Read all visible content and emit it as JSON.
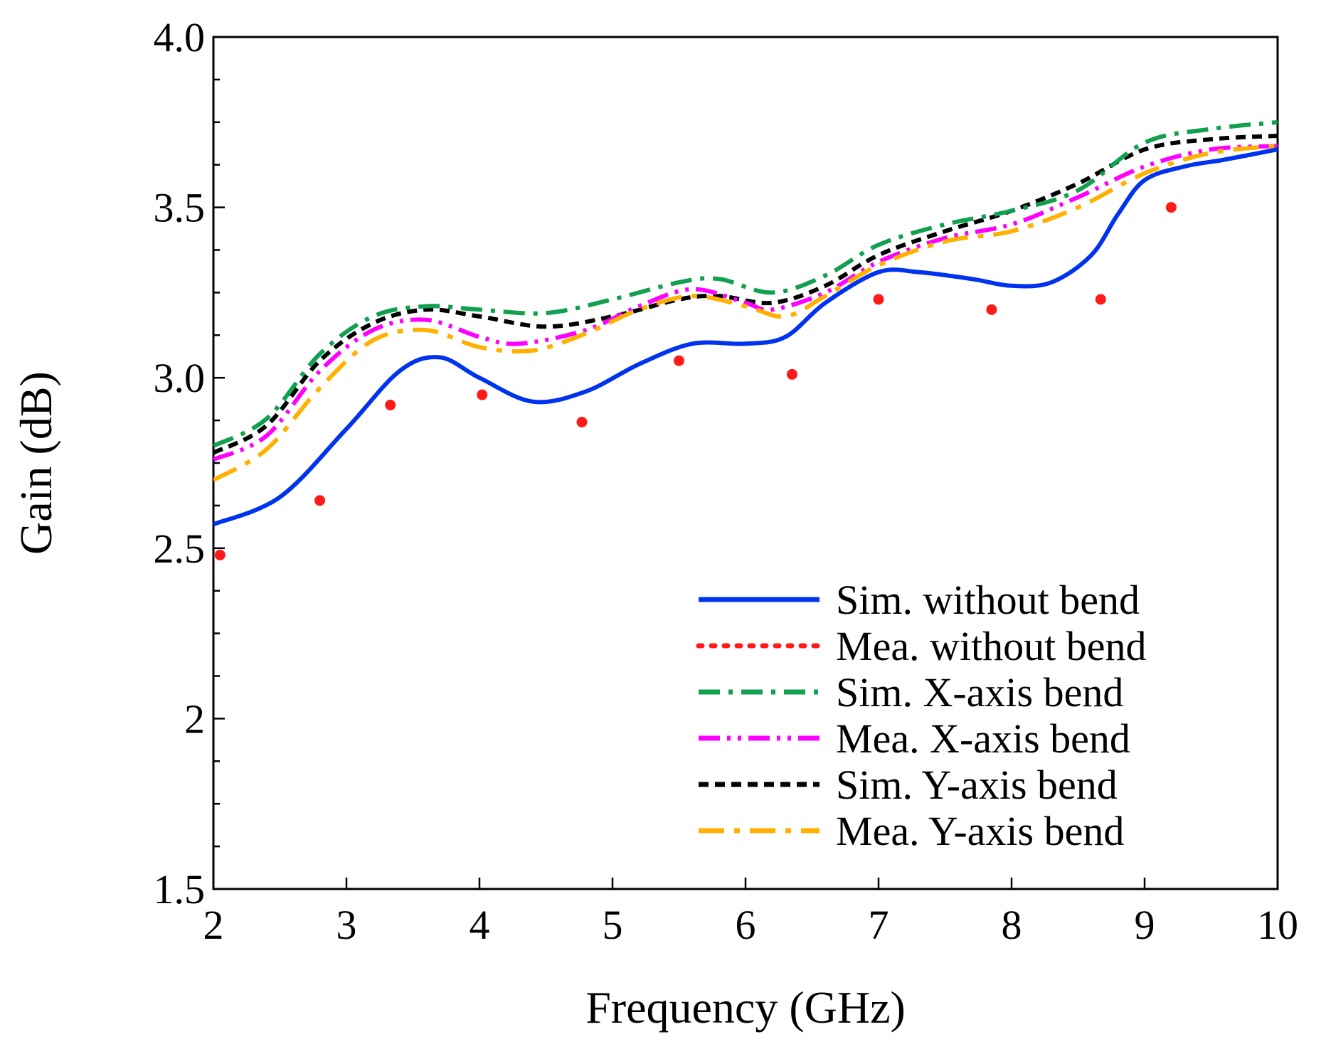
{
  "chart_data": {
    "type": "line",
    "title": "",
    "xlabel": "Frequency (GHz)",
    "ylabel": "Gain (dB)",
    "xlim": [
      2,
      10
    ],
    "ylim": [
      1.5,
      4.0
    ],
    "x_ticks": [
      {
        "value": 2,
        "label": "2"
      },
      {
        "value": 3,
        "label": "3"
      },
      {
        "value": 4,
        "label": "4"
      },
      {
        "value": 5,
        "label": "5"
      },
      {
        "value": 6,
        "label": "6"
      },
      {
        "value": 7,
        "label": "7"
      },
      {
        "value": 8,
        "label": "8"
      },
      {
        "value": 9,
        "label": "9"
      },
      {
        "value": 10,
        "label": "10"
      }
    ],
    "y_ticks": [
      {
        "value": 1.5,
        "label": "1.5"
      },
      {
        "value": 2.0,
        "label": "2"
      },
      {
        "value": 2.5,
        "label": "2.5"
      },
      {
        "value": 3.0,
        "label": "3.0"
      },
      {
        "value": 3.5,
        "label": "3.5"
      },
      {
        "value": 4.0,
        "label": "4.0"
      }
    ],
    "y_minor_step": 0.125,
    "grid": false,
    "legend_position": "bottom-right",
    "series": [
      {
        "name": "Sim. without bend",
        "color": "#0033ee",
        "style": "solid",
        "x": [
          2.0,
          2.5,
          3.0,
          3.4,
          3.7,
          4.0,
          4.4,
          4.8,
          5.2,
          5.6,
          6.0,
          6.3,
          6.6,
          7.0,
          7.3,
          7.7,
          8.0,
          8.3,
          8.6,
          8.8,
          9.0,
          9.3,
          9.6,
          10.0
        ],
        "y": [
          2.57,
          2.65,
          2.85,
          3.02,
          3.06,
          3.0,
          2.93,
          2.96,
          3.04,
          3.1,
          3.1,
          3.12,
          3.22,
          3.31,
          3.31,
          3.29,
          3.27,
          3.28,
          3.36,
          3.48,
          3.58,
          3.62,
          3.64,
          3.67
        ]
      },
      {
        "name": "Mea. without bend",
        "color": "#ff1a1a",
        "style": "dotted",
        "x": [
          2.05,
          2.8,
          3.33,
          4.02,
          4.77,
          5.5,
          6.35,
          7.0,
          7.85,
          8.67,
          9.2
        ],
        "y": [
          2.48,
          2.64,
          2.92,
          2.95,
          2.87,
          3.05,
          3.01,
          3.23,
          3.2,
          3.23,
          3.5
        ]
      },
      {
        "name": "Sim. X-axis bend",
        "color": "#10a050",
        "style": "dashdot",
        "x": [
          2.0,
          2.4,
          2.8,
          3.2,
          3.6,
          4.0,
          4.5,
          5.0,
          5.5,
          5.8,
          6.2,
          6.6,
          7.0,
          7.5,
          8.0,
          8.5,
          9.0,
          9.5,
          10.0
        ],
        "y": [
          2.8,
          2.88,
          3.07,
          3.18,
          3.21,
          3.2,
          3.19,
          3.23,
          3.28,
          3.29,
          3.25,
          3.3,
          3.39,
          3.45,
          3.49,
          3.55,
          3.69,
          3.73,
          3.75
        ]
      },
      {
        "name": "Mea. X-axis bend",
        "color": "#ff00ff",
        "style": "dashdotdot",
        "x": [
          2.0,
          2.4,
          2.8,
          3.2,
          3.6,
          4.0,
          4.3,
          4.8,
          5.2,
          5.6,
          6.0,
          6.2,
          6.6,
          7.0,
          7.5,
          8.0,
          8.5,
          9.0,
          9.5,
          10.0
        ],
        "y": [
          2.76,
          2.83,
          3.02,
          3.14,
          3.17,
          3.12,
          3.1,
          3.14,
          3.21,
          3.26,
          3.22,
          3.2,
          3.25,
          3.34,
          3.41,
          3.45,
          3.53,
          3.62,
          3.67,
          3.68
        ]
      },
      {
        "name": "Sim. Y-axis bend",
        "color": "#000000",
        "style": "dashed",
        "x": [
          2.0,
          2.4,
          2.8,
          3.2,
          3.6,
          4.0,
          4.5,
          5.0,
          5.5,
          5.8,
          6.2,
          6.6,
          7.0,
          7.5,
          8.0,
          8.5,
          9.0,
          9.5,
          10.0
        ],
        "y": [
          2.78,
          2.86,
          3.05,
          3.16,
          3.2,
          3.18,
          3.15,
          3.18,
          3.23,
          3.24,
          3.22,
          3.27,
          3.36,
          3.43,
          3.49,
          3.57,
          3.67,
          3.7,
          3.71
        ]
      },
      {
        "name": "Mea. Y-axis bend",
        "color": "#ffb000",
        "style": "longdashdot",
        "x": [
          2.0,
          2.4,
          2.8,
          3.2,
          3.6,
          4.0,
          4.4,
          4.8,
          5.2,
          5.6,
          6.0,
          6.3,
          6.6,
          7.0,
          7.5,
          8.0,
          8.5,
          9.0,
          9.5,
          10.0
        ],
        "y": [
          2.7,
          2.79,
          2.97,
          3.11,
          3.14,
          3.09,
          3.08,
          3.13,
          3.2,
          3.24,
          3.21,
          3.18,
          3.24,
          3.33,
          3.4,
          3.43,
          3.5,
          3.6,
          3.66,
          3.68
        ]
      }
    ]
  }
}
